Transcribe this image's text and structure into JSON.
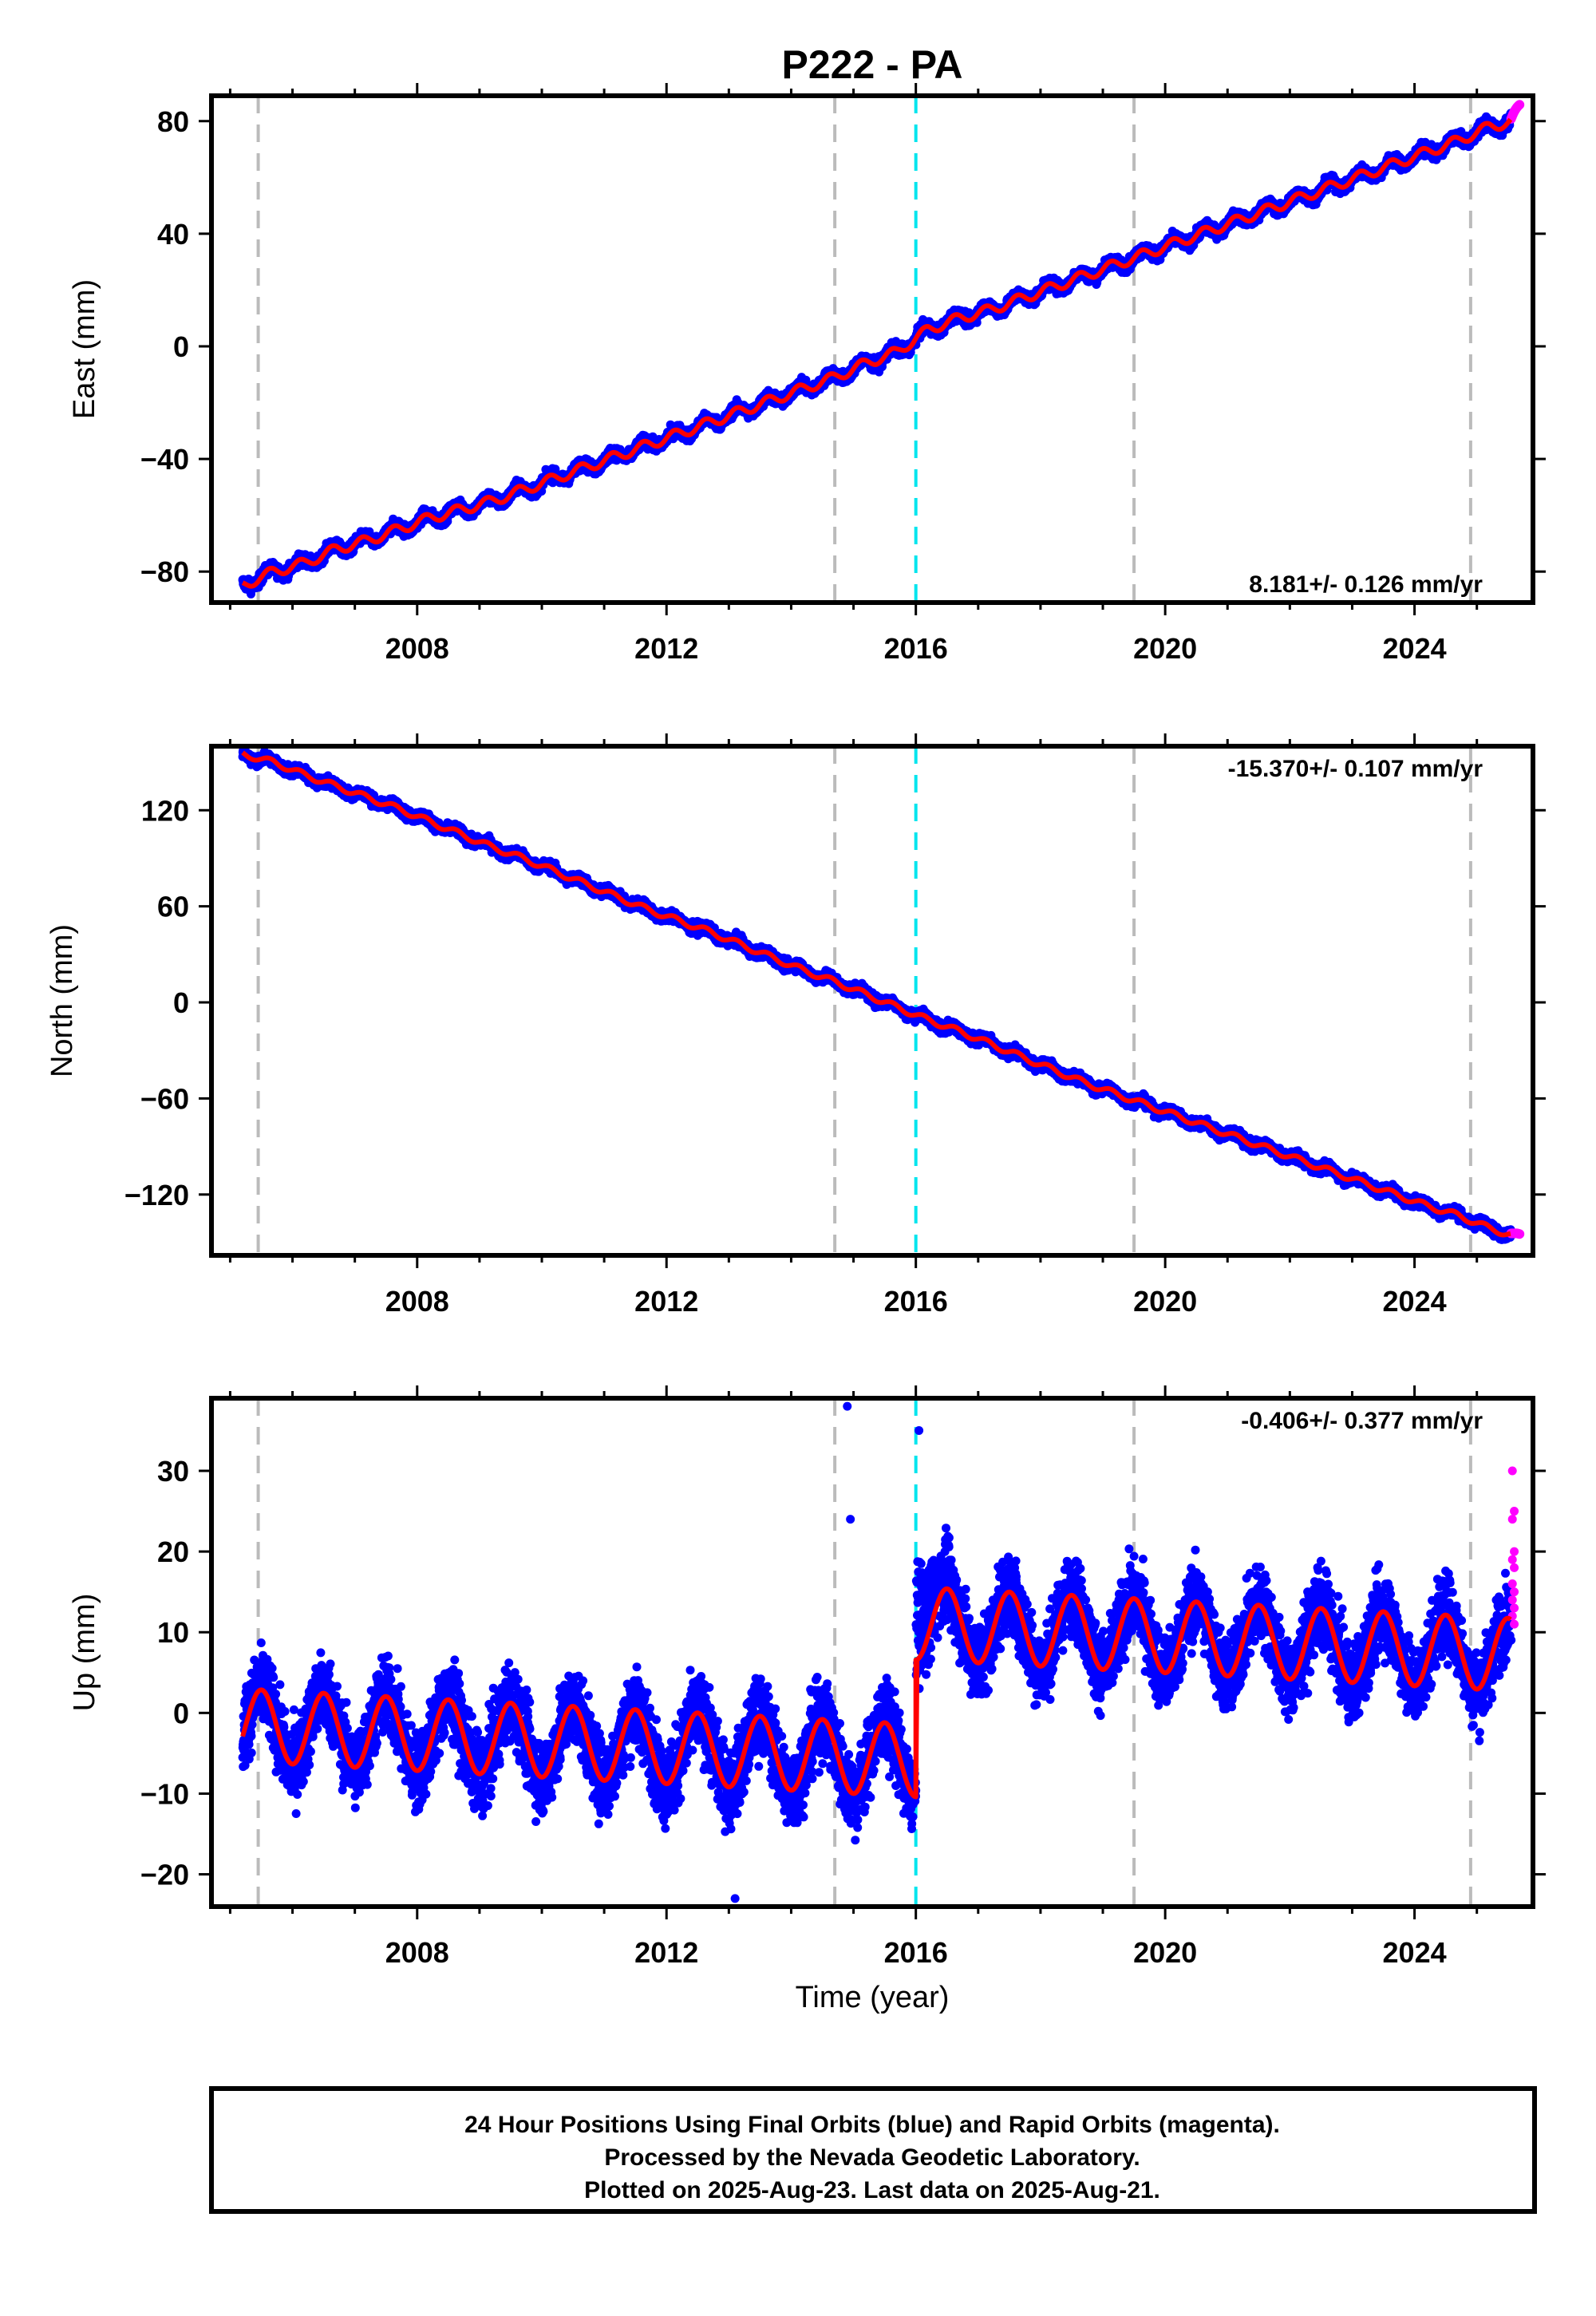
{
  "title": "P222 - PA",
  "xlabel": "Time (year)",
  "footer": {
    "line1": "24 Hour Positions Using Final Orbits (blue) and Rapid Orbits (magenta).",
    "line2": "Processed by the Nevada Geodetic Laboratory.",
    "line3": "Plotted on 2025-Aug-23. Last data on 2025-Aug-21."
  },
  "colors": {
    "final_orbits": "#0000ff",
    "rapid_orbits": "#ff00ff",
    "model": "#ff0000",
    "event_line": "#bbbbbb",
    "equipment_change": "#00e5ee"
  },
  "chart_data": [
    {
      "type": "scatter",
      "ylabel": "East (mm)",
      "rate_label": "8.181+/- 0.126 mm/yr",
      "xlim": [
        2004.7,
        2025.9
      ],
      "ylim": [
        -91,
        89
      ],
      "xticks": [
        "2008",
        "2012",
        "2016",
        "2020",
        "2024"
      ],
      "yticks": [
        "−80",
        "−40",
        "0",
        "40",
        "80"
      ],
      "ytick_values": [
        -80,
        -40,
        0,
        40,
        80
      ],
      "event_lines": [
        2005.45,
        2014.7,
        2019.5,
        2024.9
      ],
      "equipment_change": 2016.0,
      "model": {
        "x": [
          2005.2,
          2005.7,
          2006.2,
          2006.7,
          2007.2,
          2007.7,
          2008.2,
          2008.7,
          2009.2,
          2009.7,
          2010.2,
          2010.7,
          2011.2,
          2011.7,
          2012.2,
          2012.7,
          2013.2,
          2013.7,
          2014.2,
          2014.7,
          2015.2,
          2015.7,
          2016.2,
          2016.7,
          2017.2,
          2017.7,
          2018.2,
          2018.7,
          2019.2,
          2019.7,
          2020.2,
          2020.7,
          2021.2,
          2021.7,
          2022.2,
          2022.7,
          2023.2,
          2023.7,
          2024.2,
          2024.7,
          2025.2,
          2025.6
        ],
        "y": [
          -85,
          -80,
          -77,
          -72,
          -69,
          -65,
          -61,
          -58,
          -55,
          -51,
          -47,
          -43,
          -39,
          -35,
          -31,
          -27,
          -23,
          -19,
          -15,
          -11,
          -6,
          -2,
          6,
          10,
          13,
          17,
          21,
          25,
          29,
          33,
          37,
          41,
          45,
          49,
          53,
          57,
          61,
          65,
          69,
          73,
          78,
          80
        ]
      },
      "summary": "daily positions scatter (~±3 mm) around a linear trend rising from about -85 mm (2005.2) to about 80 mm (2025.6)"
    },
    {
      "type": "scatter",
      "ylabel": "North (mm)",
      "rate_label": "-15.370+/- 0.107 mm/yr",
      "xlim": [
        2004.7,
        2025.9
      ],
      "ylim": [
        -158,
        160
      ],
      "xticks": [
        "2008",
        "2012",
        "2016",
        "2020",
        "2024"
      ],
      "yticks": [
        "−120",
        "−60",
        "0",
        "60",
        "120"
      ],
      "ytick_values": [
        -120,
        -60,
        0,
        60,
        120
      ],
      "event_lines": [
        2005.45,
        2014.7,
        2019.5,
        2024.9
      ],
      "equipment_change": 2016.0,
      "model": {
        "x": [
          2005.2,
          2005.7,
          2006.2,
          2006.7,
          2007.2,
          2007.7,
          2008.2,
          2008.7,
          2009.2,
          2009.7,
          2010.2,
          2010.7,
          2011.2,
          2011.7,
          2012.2,
          2012.7,
          2013.2,
          2013.7,
          2014.2,
          2014.7,
          2015.2,
          2015.7,
          2016.2,
          2016.7,
          2017.2,
          2017.7,
          2018.2,
          2018.7,
          2019.2,
          2019.7,
          2020.2,
          2020.7,
          2021.2,
          2021.7,
          2022.2,
          2022.7,
          2023.2,
          2023.7,
          2024.2,
          2024.7,
          2025.2,
          2025.6
        ],
        "y": [
          155,
          150,
          142,
          135,
          128,
          121,
          113,
          105,
          97,
          90,
          82,
          74,
          66,
          58,
          51,
          44,
          36,
          28,
          20,
          13,
          5,
          -3,
          -11,
          -18,
          -26,
          -34,
          -42,
          -50,
          -57,
          -64,
          -71,
          -78,
          -85,
          -92,
          -99,
          -106,
          -113,
          -120,
          -127,
          -133,
          -141,
          -146
        ]
      },
      "summary": "daily positions scatter (~±3 mm) around a linear trend falling from about 155 mm (2005.2) to about -146 mm (2025.6)"
    },
    {
      "type": "scatter",
      "ylabel": "Up (mm)",
      "rate_label": "-0.406+/- 0.377 mm/yr",
      "xlim": [
        2004.7,
        2025.9
      ],
      "ylim": [
        -24,
        39
      ],
      "xticks": [
        "2008",
        "2012",
        "2016",
        "2020",
        "2024"
      ],
      "yticks": [
        "−20",
        "−10",
        "0",
        "10",
        "20",
        "30"
      ],
      "ytick_values": [
        -20,
        -10,
        0,
        10,
        20,
        30
      ],
      "event_lines": [
        2005.45,
        2014.7,
        2019.5,
        2024.9
      ],
      "equipment_change": 2016.0,
      "model": {
        "offset_at": 2016.0,
        "mean_before": -5.5,
        "mean_after": 11.5,
        "annual_amplitude": 4.5,
        "trend_mm_per_yr": -0.406
      },
      "rapid_orbit_points": [
        30,
        25,
        24,
        20,
        19,
        18,
        16,
        15,
        14,
        13,
        12,
        11
      ],
      "summary": "seasonal oscillation (~±4.5 mm) with scatter (~±4 mm); step of about +17 mm at 2016.0"
    }
  ]
}
